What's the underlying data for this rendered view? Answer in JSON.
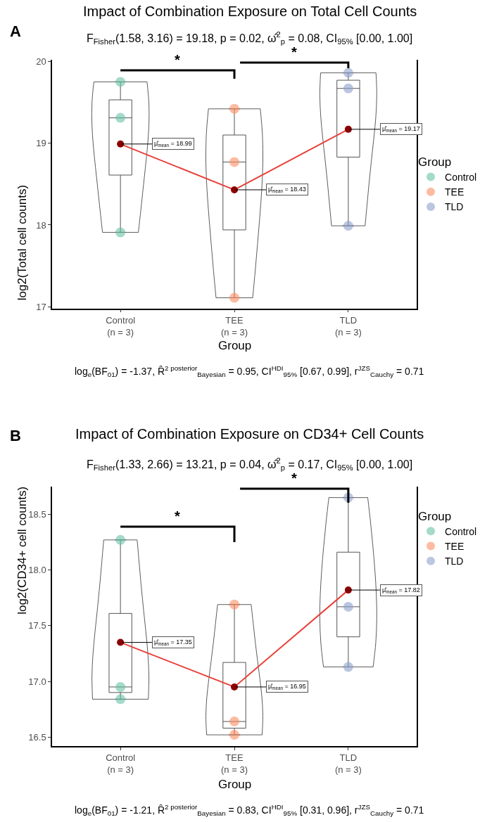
{
  "chart_data": [
    {
      "type": "box",
      "title": "Impact of Combination Exposure on Total Cell Counts",
      "subtitle": "F$_{Fisher}$(1.58, 3.16) = 19.18, p = 0.02, ω̂$^{2}$$_{p}$ = 0.08, CI$_{95%}$ [0.00, 1.00]",
      "xlabel": "Group",
      "ylabel": "log2(Total cell counts)",
      "legend_title": "Group",
      "legend": "right",
      "categories": [
        "Control\n(n = 3)",
        "TEE\n(n = 3)",
        "TLD\n(n = 3)"
      ],
      "ylim": [
        16.98,
        20.02
      ],
      "yticks": [
        17,
        18,
        19,
        20
      ],
      "boxes": [
        {
          "low": 17.91,
          "q1": 18.61,
          "median": 19.31,
          "q3": 19.53,
          "high": 19.75
        },
        {
          "low": 17.11,
          "q1": 17.94,
          "median": 18.77,
          "q3": 19.1,
          "high": 19.42
        },
        {
          "low": 17.99,
          "q1": 18.83,
          "median": 19.67,
          "q3": 19.77,
          "high": 19.86
        }
      ],
      "series": [
        {
          "type": "scatter",
          "name": "Control",
          "color": "#66c2a5",
          "x": [
            "Control\n(n = 3)",
            "Control\n(n = 3)",
            "Control\n(n = 3)"
          ],
          "values": [
            19.75,
            19.31,
            17.91
          ]
        },
        {
          "type": "scatter",
          "name": "TEE",
          "color": "#fc8d62",
          "x": [
            "TEE\n(n = 3)",
            "TEE\n(n = 3)",
            "TEE\n(n = 3)"
          ],
          "values": [
            19.42,
            18.77,
            17.11
          ]
        },
        {
          "type": "scatter",
          "name": "TLD",
          "color": "#8da0cb",
          "x": [
            "TLD\n(n = 3)",
            "TLD\n(n = 3)",
            "TLD\n(n = 3)"
          ],
          "values": [
            19.86,
            19.67,
            17.99
          ]
        },
        {
          "type": "line",
          "color": "#e8413a",
          "colors": [
            "#8b0000",
            "#8b0000",
            "#8b0000"
          ],
          "marker": "circle",
          "values": [
            18.99,
            18.43,
            19.17
          ]
        }
      ],
      "annotations": [
        "A",
        "*",
        "*",
        {
          "text": "μ̂$_{mean}$ = 18.99",
          "x": "Control\n(n = 3)",
          "y": 18.99
        },
        {
          "text": "μ̂$_{mean}$ = 18.43",
          "x": "TEE\n(n = 3)",
          "y": 18.43
        },
        {
          "text": "μ̂$_{mean}$ = 19.17",
          "x": "TLD\n(n = 3)",
          "y": 19.17
        },
        "log$_{e}$(BF$_{01}$) = -1.37, R̂$^{2 posterior}$$_{Bayesian}$ = 0.95, CI$^{HDI}$$_{95%}$ [0.67, 0.99], r$^{JZS}$$_{Cauchy}$ = 0.71"
      ]
    },
    {
      "type": "box",
      "title": "Impact of Combination Exposure on CD34+ Cell Counts",
      "subtitle": "F$_{Fisher}$(1.33, 2.66) = 13.21, p = 0.04, ω̂$^{2}$$_{p}$ = 0.17, CI$_{95%}$ [0.00, 1.00]",
      "xlabel": "Group",
      "ylabel": "log2(CD34+ cell counts)",
      "legend_title": "Group",
      "legend": "right",
      "categories": [
        "Control\n(n = 3)",
        "TEE\n(n = 3)",
        "TLD\n(n = 3)"
      ],
      "ylim": [
        16.42,
        18.75
      ],
      "yticks": [
        16.5,
        {
          "value": 17,
          "label": "17.0"
        },
        17.5,
        {
          "value": 18,
          "label": "18.0"
        },
        18.5
      ],
      "boxes": [
        {
          "low": 16.84,
          "q1": 16.9,
          "median": 16.95,
          "q3": 17.61,
          "high": 18.27
        },
        {
          "low": 16.52,
          "q1": 16.58,
          "median": 16.64,
          "q3": 17.17,
          "high": 17.69
        },
        {
          "low": 17.13,
          "q1": 17.4,
          "median": 17.67,
          "q3": 18.16,
          "high": 18.65
        }
      ],
      "series": [
        {
          "type": "scatter",
          "name": "Control",
          "color": "#66c2a5",
          "x": [
            "Control\n(n = 3)",
            "Control\n(n = 3)",
            "Control\n(n = 3)"
          ],
          "values": [
            18.27,
            16.95,
            16.84
          ]
        },
        {
          "type": "scatter",
          "name": "TEE",
          "color": "#fc8d62",
          "x": [
            "TEE\n(n = 3)",
            "TEE\n(n = 3)",
            "TEE\n(n = 3)"
          ],
          "values": [
            17.69,
            16.64,
            16.52
          ]
        },
        {
          "type": "scatter",
          "name": "TLD",
          "color": "#8da0cb",
          "x": [
            "TLD\n(n = 3)",
            "TLD\n(n = 3)",
            "TLD\n(n = 3)"
          ],
          "values": [
            18.65,
            17.67,
            17.13
          ]
        },
        {
          "type": "line",
          "color": "#e8413a",
          "colors": [
            "#8b0000",
            "#8b0000",
            "#8b0000"
          ],
          "marker": "circle",
          "values": [
            17.35,
            16.95,
            17.82
          ]
        }
      ],
      "annotations": [
        "B",
        "*",
        "*",
        {
          "text": "μ̂$_{mean}$ = 17.35",
          "x": "Control\n(n = 3)",
          "y": 17.35
        },
        {
          "text": "μ̂$_{mean}$ = 16.95",
          "x": "TEE\n(n = 3)",
          "y": 16.95
        },
        {
          "text": "μ̂$_{mean}$ = 17.82",
          "x": "TLD\n(n = 3)",
          "y": 17.82
        },
        "log$_{e}$(BF$_{01}$) = -1.21, R̂$^{2 posterior}$$_{Bayesian}$ = 0.83, CI$^{HDI}$$_{95%}$ [0.31, 0.96], r$^{JZS}$$_{Cauchy}$ = 0.71"
      ]
    }
  ]
}
